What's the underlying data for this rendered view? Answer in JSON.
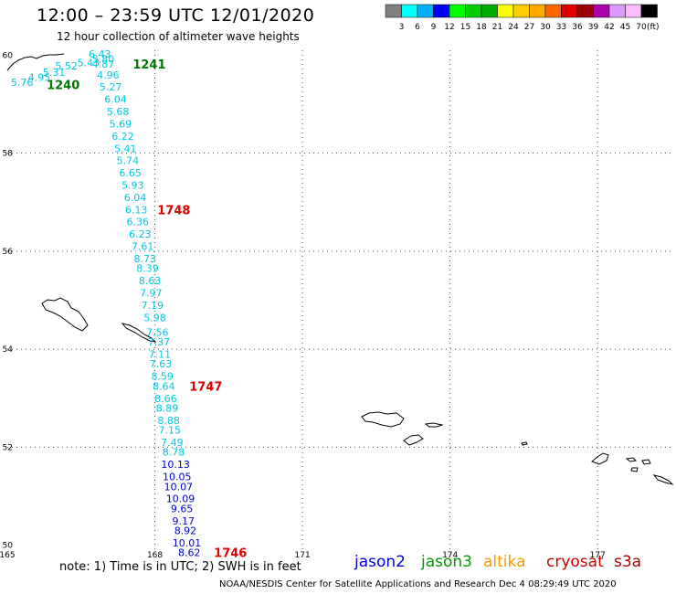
{
  "title": "12:00 – 23:59 UTC 12/01/2020",
  "subtitle": "12 hour collection of altimeter wave heights",
  "legend": {
    "colors": [
      "#808080",
      "#00ffff",
      "#00b0ff",
      "#0000ff",
      "#00ff00",
      "#00cc00",
      "#00aa00",
      "#ffff00",
      "#ffcc00",
      "#ffaa00",
      "#ff6600",
      "#dd0000",
      "#990000",
      "#aa00aa",
      "#dd99ff",
      "#ffbbff",
      "#000000"
    ],
    "labels": [
      "3",
      "6",
      "9",
      "12",
      "15",
      "18",
      "21",
      "24",
      "27",
      "30",
      "33",
      "36",
      "39",
      "42",
      "45",
      "70"
    ],
    "unit": "(ft)"
  },
  "axes": {
    "lon_ticks": [
      "165",
      "168",
      "171",
      "174",
      "177"
    ],
    "lat_ticks": [
      "60",
      "58",
      "56",
      "54",
      "52",
      "50"
    ]
  },
  "chart_data": {
    "type": "map",
    "lon_range": [
      165,
      178.5
    ],
    "lat_range": [
      49.9,
      60.1
    ],
    "grid": true,
    "grid_lons": [
      168,
      171,
      174,
      177
    ],
    "grid_lats": [
      58,
      56,
      54,
      52
    ],
    "track_colors": {
      "cyan": "#00c8e0",
      "blue": "#0000cc",
      "green": "#007700",
      "red": "#dd0000"
    },
    "swh_points": [
      {
        "lon": 166.88,
        "lat": 60.03,
        "value": "6.43",
        "color": "cyan"
      },
      {
        "lon": 166.95,
        "lat": 59.92,
        "value": "5.80",
        "color": "cyan"
      },
      {
        "lon": 166.65,
        "lat": 59.85,
        "value": "5.43",
        "color": "cyan"
      },
      {
        "lon": 166.95,
        "lat": 59.82,
        "value": "4.87",
        "color": "cyan"
      },
      {
        "lon": 166.2,
        "lat": 59.78,
        "value": "5.52",
        "color": "cyan"
      },
      {
        "lon": 165.95,
        "lat": 59.65,
        "value": "5.31",
        "color": "cyan"
      },
      {
        "lon": 165.65,
        "lat": 59.55,
        "value": "4.95",
        "color": "cyan"
      },
      {
        "lon": 165.3,
        "lat": 59.45,
        "value": "5.76",
        "color": "cyan"
      },
      {
        "lon": 167.05,
        "lat": 59.6,
        "value": "4.96",
        "color": "cyan"
      },
      {
        "lon": 167.1,
        "lat": 59.35,
        "value": "5.27",
        "color": "cyan"
      },
      {
        "lon": 167.2,
        "lat": 59.1,
        "value": "6.04",
        "color": "cyan"
      },
      {
        "lon": 167.25,
        "lat": 58.85,
        "value": "5.68",
        "color": "cyan"
      },
      {
        "lon": 167.3,
        "lat": 58.6,
        "value": "5.69",
        "color": "cyan"
      },
      {
        "lon": 167.35,
        "lat": 58.35,
        "value": "6.22",
        "color": "cyan"
      },
      {
        "lon": 167.4,
        "lat": 58.1,
        "value": "5.41",
        "color": "cyan"
      },
      {
        "lon": 167.45,
        "lat": 57.85,
        "value": "5.74",
        "color": "cyan"
      },
      {
        "lon": 167.5,
        "lat": 57.6,
        "value": "6.65",
        "color": "cyan"
      },
      {
        "lon": 167.55,
        "lat": 57.35,
        "value": "5.93",
        "color": "cyan"
      },
      {
        "lon": 167.6,
        "lat": 57.1,
        "value": "6.04",
        "color": "cyan"
      },
      {
        "lon": 167.62,
        "lat": 56.85,
        "value": "6.13",
        "color": "cyan"
      },
      {
        "lon": 167.65,
        "lat": 56.6,
        "value": "6.36",
        "color": "cyan"
      },
      {
        "lon": 167.7,
        "lat": 56.35,
        "value": "6.23",
        "color": "cyan"
      },
      {
        "lon": 167.75,
        "lat": 56.1,
        "value": "7.61",
        "color": "cyan"
      },
      {
        "lon": 167.8,
        "lat": 55.85,
        "value": "8.73",
        "color": "cyan"
      },
      {
        "lon": 167.85,
        "lat": 55.65,
        "value": "8.39",
        "color": "cyan"
      },
      {
        "lon": 167.9,
        "lat": 55.4,
        "value": "8.63",
        "color": "cyan"
      },
      {
        "lon": 167.92,
        "lat": 55.15,
        "value": "7.97",
        "color": "cyan"
      },
      {
        "lon": 167.95,
        "lat": 54.9,
        "value": "7.19",
        "color": "cyan"
      },
      {
        "lon": 168.0,
        "lat": 54.65,
        "value": "5.98",
        "color": "cyan"
      },
      {
        "lon": 168.05,
        "lat": 54.35,
        "value": "7.56",
        "color": "cyan"
      },
      {
        "lon": 168.08,
        "lat": 54.15,
        "value": "7.37",
        "color": "cyan"
      },
      {
        "lon": 168.1,
        "lat": 53.9,
        "value": "7.11",
        "color": "cyan"
      },
      {
        "lon": 168.12,
        "lat": 53.7,
        "value": "7.63",
        "color": "cyan"
      },
      {
        "lon": 168.15,
        "lat": 53.45,
        "value": "8.59",
        "color": "cyan"
      },
      {
        "lon": 168.18,
        "lat": 53.25,
        "value": "8.64",
        "color": "cyan"
      },
      {
        "lon": 168.22,
        "lat": 53.0,
        "value": "8.66",
        "color": "cyan"
      },
      {
        "lon": 168.25,
        "lat": 52.8,
        "value": "8.89",
        "color": "cyan"
      },
      {
        "lon": 168.28,
        "lat": 52.55,
        "value": "8.88",
        "color": "cyan"
      },
      {
        "lon": 168.3,
        "lat": 52.35,
        "value": "7.15",
        "color": "cyan"
      },
      {
        "lon": 168.35,
        "lat": 52.1,
        "value": "7.49",
        "color": "cyan"
      },
      {
        "lon": 168.38,
        "lat": 51.9,
        "value": "8.78",
        "color": "cyan"
      },
      {
        "lon": 168.42,
        "lat": 51.65,
        "value": "10.13",
        "color": "blue"
      },
      {
        "lon": 168.45,
        "lat": 51.4,
        "value": "10.05",
        "color": "blue"
      },
      {
        "lon": 168.48,
        "lat": 51.2,
        "value": "10.07",
        "color": "blue"
      },
      {
        "lon": 168.52,
        "lat": 50.95,
        "value": "10.09",
        "color": "blue"
      },
      {
        "lon": 168.55,
        "lat": 50.75,
        "value": "9.65",
        "color": "blue"
      },
      {
        "lon": 168.58,
        "lat": 50.5,
        "value": "9.17",
        "color": "blue"
      },
      {
        "lon": 168.62,
        "lat": 50.3,
        "value": "8.92",
        "color": "blue"
      },
      {
        "lon": 168.65,
        "lat": 50.05,
        "value": "10.01",
        "color": "blue"
      },
      {
        "lon": 168.7,
        "lat": 49.85,
        "value": "8.62",
        "color": "blue"
      }
    ],
    "time_labels": [
      {
        "lon": 167.55,
        "lat": 59.82,
        "value": "1241",
        "color": "green"
      },
      {
        "lon": 165.8,
        "lat": 59.4,
        "value": "1240",
        "color": "green"
      },
      {
        "lon": 168.05,
        "lat": 56.85,
        "value": "1748",
        "color": "red"
      },
      {
        "lon": 168.7,
        "lat": 53.25,
        "value": "1747",
        "color": "red"
      },
      {
        "lon": 169.2,
        "lat": 49.85,
        "value": "1746",
        "color": "red"
      }
    ]
  },
  "footer": {
    "note": "note:  1) Time is in UTC;  2) SWH is in feet",
    "satellites": [
      {
        "name": "jason2",
        "color": "#0000dd"
      },
      {
        "name": "jason3",
        "color": "#009900"
      },
      {
        "name": "altika",
        "color": "#ff9900"
      },
      {
        "name": "cryosat",
        "color": "#cc0000"
      },
      {
        "name": "s3a",
        "color": "#aa0000"
      }
    ],
    "credit": "NOAA/NESDIS Center for Satellite Applications and Research     Dec  4 08:29:49 UTC 2020"
  }
}
